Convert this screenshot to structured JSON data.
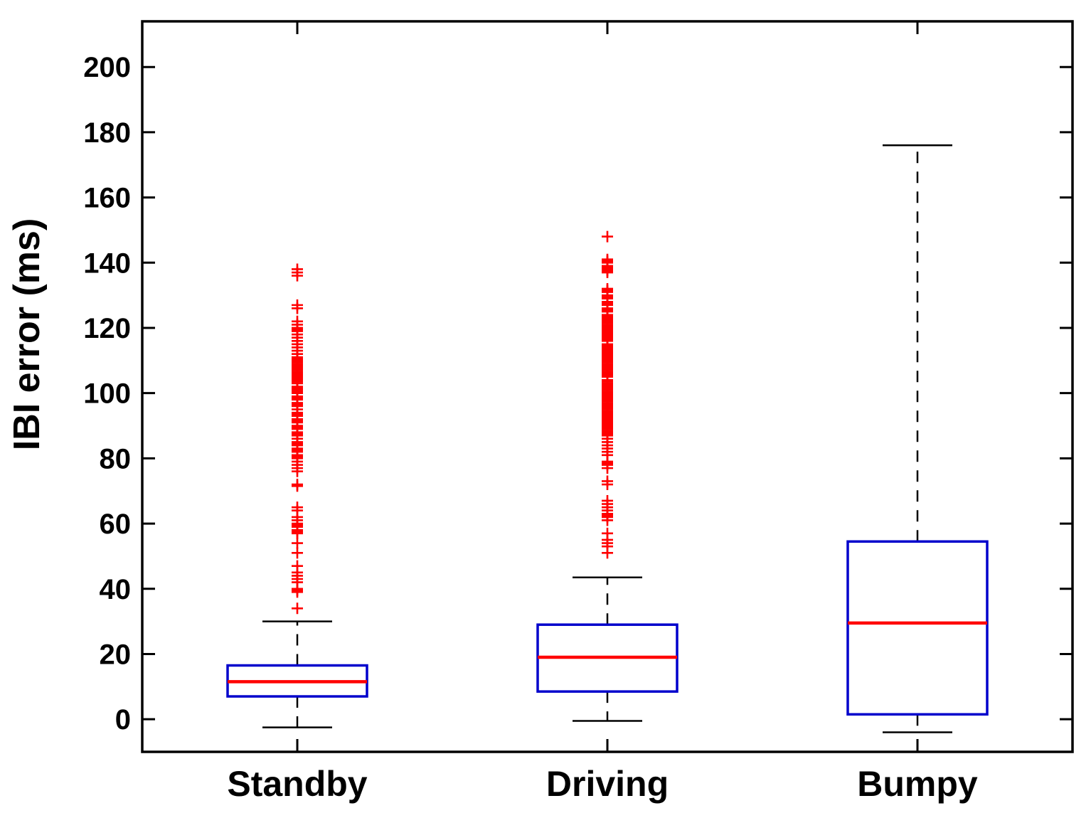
{
  "chart_data": {
    "type": "box",
    "title": "",
    "xlabel": "",
    "ylabel": "IBI error (ms)",
    "categories": [
      "Standby",
      "Driving",
      "Bumpy"
    ],
    "ylim": [
      -10,
      214
    ],
    "yticks": [
      0,
      20,
      40,
      60,
      80,
      100,
      120,
      140,
      160,
      180,
      200
    ],
    "grid": false,
    "legend": "none",
    "series": [
      {
        "name": "Standby",
        "whisker_low": -2.5,
        "q1": 7,
        "median": 11.5,
        "q3": 16.5,
        "whisker_high": 30,
        "outliers": [
          138,
          137,
          136,
          127,
          126,
          122,
          121,
          120,
          119.5,
          119,
          118,
          117,
          116,
          115,
          114,
          113,
          112,
          111,
          110.5,
          110,
          109.5,
          109,
          108.5,
          108,
          107.5,
          107,
          106.5,
          106,
          105.5,
          105,
          104.5,
          104,
          103.5,
          103,
          102,
          101.5,
          101,
          100.5,
          100,
          99,
          98.5,
          98,
          97,
          96.5,
          96,
          95,
          94,
          93.5,
          93,
          92,
          91.5,
          91,
          90,
          89.5,
          89,
          88,
          87.5,
          87,
          86,
          85,
          84.5,
          84,
          83,
          82.5,
          82,
          81,
          80.5,
          80,
          79,
          78,
          77,
          76,
          72,
          71.5,
          65,
          64,
          62,
          61,
          60,
          59.5,
          59,
          58,
          57.5,
          57,
          54,
          51,
          47,
          45,
          44,
          43,
          42,
          40,
          39.5,
          39,
          34
        ]
      },
      {
        "name": "Driving",
        "whisker_low": -0.5,
        "q1": 8.5,
        "median": 19,
        "q3": 29,
        "whisker_high": 43.5,
        "outliers": [
          148,
          141,
          140.5,
          140,
          139,
          138.5,
          138,
          137.5,
          137,
          132,
          131.5,
          131,
          130,
          129.5,
          129,
          128,
          127.5,
          127,
          126,
          125.5,
          125,
          124,
          123.5,
          123,
          122.5,
          122,
          121.5,
          121,
          120.5,
          120,
          119.5,
          119,
          118.5,
          118,
          117.5,
          117,
          116.5,
          116,
          115,
          114.5,
          114,
          113.5,
          113,
          112.5,
          112,
          111.5,
          111,
          110.5,
          110,
          109.5,
          109,
          108.5,
          108,
          107.5,
          107,
          106.5,
          106,
          105.5,
          105,
          104,
          103.5,
          103,
          102.5,
          102,
          101.5,
          101,
          100.5,
          100,
          99.5,
          99,
          98.5,
          98,
          97.5,
          97,
          96.5,
          96,
          95.5,
          95,
          94.5,
          94,
          93.5,
          93,
          92.5,
          92,
          91.5,
          91,
          90.5,
          90,
          89.5,
          89,
          88.5,
          88,
          87.5,
          87,
          86,
          85,
          84,
          83,
          82,
          81,
          79,
          78.5,
          78,
          77,
          73,
          72,
          67,
          66,
          65,
          64,
          63,
          62.5,
          62,
          61,
          57,
          55,
          54,
          53,
          51
        ]
      },
      {
        "name": "Bumpy",
        "whisker_low": -4,
        "q1": 1.5,
        "median": 29.5,
        "q3": 54.5,
        "whisker_high": 176,
        "outliers": []
      }
    ],
    "colors": {
      "box": "#0000CC",
      "median": "#FF0000",
      "whisker": "#000000",
      "outlier": "#FF0000",
      "axis": "#000000",
      "background": "#FFFFFF"
    }
  }
}
